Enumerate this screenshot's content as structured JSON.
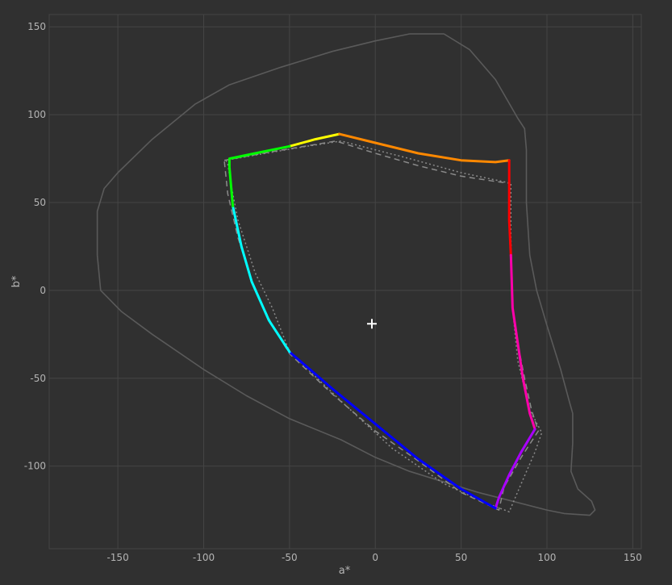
{
  "chart_data": {
    "type": "line",
    "xlabel": "a*",
    "ylabel": "b*",
    "xlim": [
      -190,
      155
    ],
    "ylim": [
      -147,
      157
    ],
    "x_ticks": [
      -150,
      -100,
      -50,
      0,
      50,
      100,
      150
    ],
    "y_ticks": [
      -100,
      -50,
      0,
      50,
      100,
      150
    ],
    "grid": true,
    "colors": {
      "background": "#303030",
      "grid": "#454545",
      "tick_text": "#b4b4b4",
      "outer_boundary": "#5a5a5a",
      "reference_dashed": "#8a8a8a",
      "reference_dotted": "#8a8a8a",
      "white_point": "#ffffff"
    },
    "white_point": {
      "x": -2,
      "y": -19
    },
    "outer_boundary": [
      [
        -162,
        20
      ],
      [
        -160,
        0
      ],
      [
        -148,
        -12
      ],
      [
        -130,
        -25
      ],
      [
        -100,
        -45
      ],
      [
        -75,
        -60
      ],
      [
        -50,
        -73
      ],
      [
        -20,
        -85
      ],
      [
        0,
        -95
      ],
      [
        20,
        -103
      ],
      [
        40,
        -109
      ],
      [
        60,
        -115
      ],
      [
        80,
        -120
      ],
      [
        100,
        -125
      ],
      [
        110,
        -127
      ],
      [
        125,
        -128
      ],
      [
        128,
        -125
      ],
      [
        126,
        -120
      ],
      [
        118,
        -113
      ],
      [
        114,
        -103
      ],
      [
        115,
        -87
      ],
      [
        115,
        -70
      ],
      [
        113,
        -63
      ],
      [
        108,
        -45
      ],
      [
        100,
        -20
      ],
      [
        94,
        0
      ],
      [
        90,
        20
      ],
      [
        88,
        50
      ],
      [
        88,
        80
      ],
      [
        87,
        92
      ],
      [
        83,
        98
      ],
      [
        70,
        120
      ],
      [
        55,
        137
      ],
      [
        40,
        146
      ],
      [
        20,
        146
      ],
      [
        0,
        142
      ],
      [
        -25,
        136
      ],
      [
        -55,
        127
      ],
      [
        -85,
        117
      ],
      [
        -105,
        106
      ],
      [
        -130,
        86
      ],
      [
        -150,
        67
      ],
      [
        -158,
        58
      ],
      [
        -162,
        45
      ],
      [
        -162,
        30
      ],
      [
        -162,
        20
      ]
    ],
    "gamut_colored_series": [
      {
        "color": "#ffff00",
        "points": [
          [
            -21,
            89
          ],
          [
            -35,
            86
          ],
          [
            -50,
            82
          ]
        ]
      },
      {
        "color": "#ff8800",
        "points": [
          [
            -21,
            89
          ],
          [
            0,
            84
          ],
          [
            25,
            78
          ],
          [
            50,
            74
          ],
          [
            70,
            73
          ],
          [
            78,
            74
          ]
        ]
      },
      {
        "color": "#ff0000",
        "points": [
          [
            78,
            74
          ],
          [
            78,
            40
          ],
          [
            79,
            20
          ]
        ]
      },
      {
        "color": "#ff00aa",
        "points": [
          [
            79,
            20
          ],
          [
            80,
            -10
          ],
          [
            83,
            -30
          ],
          [
            86,
            -50
          ],
          [
            90,
            -70
          ],
          [
            93,
            -79
          ]
        ]
      },
      {
        "color": "#aa00ff",
        "points": [
          [
            93,
            -79
          ],
          [
            85,
            -92
          ],
          [
            78,
            -105
          ],
          [
            72,
            -118
          ],
          [
            70,
            -124
          ]
        ]
      },
      {
        "color": "#0000ff",
        "points": [
          [
            70,
            -124
          ],
          [
            50,
            -113
          ],
          [
            25,
            -96
          ],
          [
            0,
            -76
          ],
          [
            -25,
            -56
          ],
          [
            -50,
            -35
          ]
        ]
      },
      {
        "color": "#00ffff",
        "points": [
          [
            -50,
            -35
          ],
          [
            -62,
            -17
          ],
          [
            -72,
            5
          ],
          [
            -78,
            25
          ],
          [
            -83,
            48
          ]
        ]
      },
      {
        "color": "#00ff00",
        "points": [
          [
            -83,
            48
          ],
          [
            -85,
            70
          ],
          [
            -85,
            75
          ],
          [
            -70,
            78
          ],
          [
            -50,
            82
          ]
        ]
      }
    ],
    "reference_dashed": [
      [
        -88,
        74
      ],
      [
        -60,
        79
      ],
      [
        -35,
        83
      ],
      [
        -23,
        85
      ],
      [
        0,
        78
      ],
      [
        25,
        71
      ],
      [
        50,
        65
      ],
      [
        70,
        62
      ],
      [
        78,
        61
      ],
      [
        78,
        40
      ],
      [
        79,
        20
      ],
      [
        80,
        -10
      ],
      [
        83,
        -30
      ],
      [
        87,
        -50
      ],
      [
        91,
        -68
      ],
      [
        95,
        -80
      ],
      [
        85,
        -95
      ],
      [
        75,
        -112
      ],
      [
        72,
        -125
      ],
      [
        50,
        -115
      ],
      [
        25,
        -97
      ],
      [
        0,
        -80
      ],
      [
        -25,
        -59
      ],
      [
        -50,
        -36
      ],
      [
        -60,
        -20
      ],
      [
        -70,
        0
      ],
      [
        -80,
        30
      ],
      [
        -86,
        55
      ],
      [
        -88,
        74
      ]
    ],
    "reference_dotted": [
      [
        -87,
        74
      ],
      [
        -86,
        72
      ],
      [
        -84,
        60
      ],
      [
        -80,
        40
      ],
      [
        -70,
        10
      ],
      [
        -60,
        -10
      ],
      [
        -50,
        -35
      ],
      [
        -20,
        -63
      ],
      [
        10,
        -90
      ],
      [
        40,
        -110
      ],
      [
        62,
        -120
      ],
      [
        78,
        -126
      ],
      [
        85,
        -110
      ],
      [
        93,
        -92
      ],
      [
        97,
        -81
      ],
      [
        90,
        -68
      ],
      [
        83,
        -40
      ],
      [
        80,
        -10
      ],
      [
        79,
        30
      ],
      [
        79,
        61
      ],
      [
        50,
        67
      ],
      [
        20,
        75
      ],
      [
        0,
        80
      ],
      [
        -20,
        85
      ],
      [
        -40,
        82
      ],
      [
        -70,
        77
      ],
      [
        -87,
        74
      ]
    ]
  }
}
